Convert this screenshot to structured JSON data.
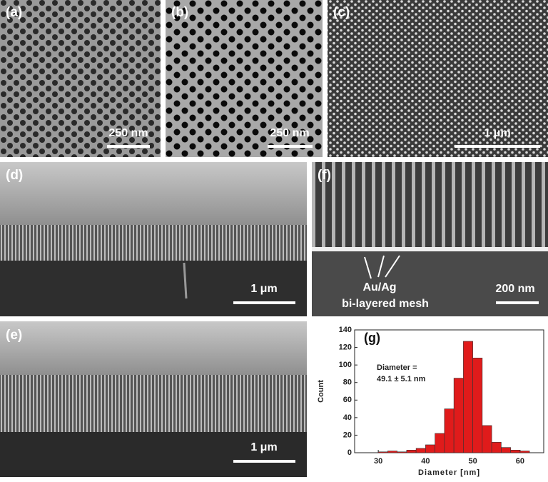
{
  "panels": [
    {
      "label": "(a)",
      "scale_bar": "250 nm"
    },
    {
      "label": "(b)",
      "scale_bar": "250 nm"
    },
    {
      "label": "(c)",
      "scale_bar": "1 μm"
    },
    {
      "label": "(d)",
      "scale_bar": "1 μm"
    },
    {
      "label": "(e)",
      "scale_bar": "1 μm"
    },
    {
      "label": "(f)",
      "scale_bar": "200 nm",
      "annotation": [
        "Au/Ag",
        "bi-layered mesh"
      ]
    }
  ],
  "chart_data": {
    "type": "histogram",
    "label": "(g)",
    "annotation": [
      "Diameter =",
      "49.1 ± 5.1 nm"
    ],
    "xlabel": "Diameter [nm]",
    "ylabel": "Count",
    "bins": [
      30,
      32,
      34,
      36,
      38,
      40,
      42,
      44,
      46,
      48,
      50,
      52,
      54,
      56,
      58,
      60,
      62
    ],
    "values": [
      1,
      2,
      1,
      3,
      5,
      9,
      22,
      50,
      85,
      127,
      108,
      31,
      12,
      6,
      3,
      2
    ],
    "color": "#e01b1b",
    "xlim": [
      25,
      65
    ],
    "ylim": [
      0,
      140
    ],
    "xticks": [
      30,
      40,
      50,
      60
    ],
    "yticks": [
      0,
      20,
      40,
      60,
      80,
      100,
      120,
      140
    ]
  }
}
